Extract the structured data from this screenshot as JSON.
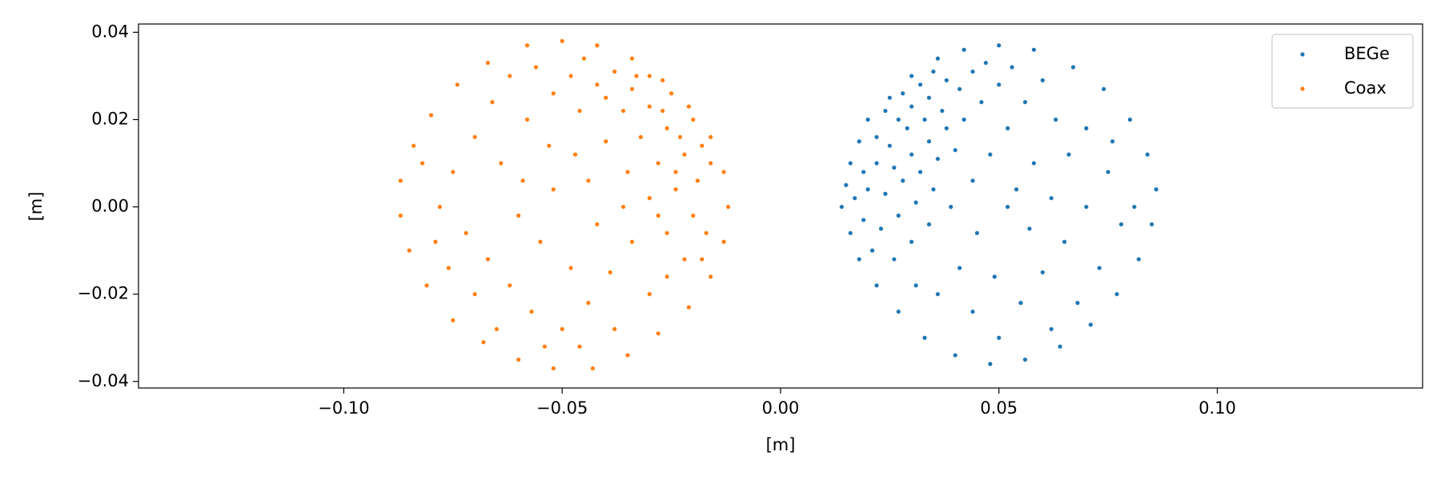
{
  "chart_data": {
    "type": "scatter",
    "xlabel": "[m]",
    "ylabel": "[m]",
    "xlim": [
      -0.147,
      0.147
    ],
    "ylim": [
      -0.0415,
      0.0419
    ],
    "xticks": [
      {
        "value": -0.1,
        "label": "−0.10"
      },
      {
        "value": -0.05,
        "label": "−0.05"
      },
      {
        "value": 0,
        "label": "0.00"
      },
      {
        "value": 0.05,
        "label": "0.05"
      },
      {
        "value": 0.1,
        "label": "0.10"
      }
    ],
    "yticks": [
      {
        "value": -0.04,
        "label": "−0.04"
      },
      {
        "value": -0.02,
        "label": "−0.02"
      },
      {
        "value": 0,
        "label": "0.00"
      },
      {
        "value": 0.02,
        "label": "0.02"
      },
      {
        "value": 0.04,
        "label": "0.04"
      }
    ],
    "legend": "upper right",
    "series": [
      {
        "name": "BEGe",
        "color": "#1f77b4",
        "x": [
          0.03,
          0.025,
          0.02,
          0.018,
          0.016,
          0.015,
          0.014,
          0.016,
          0.018,
          0.022,
          0.027,
          0.033,
          0.04,
          0.048,
          0.056,
          0.064,
          0.071,
          0.077,
          0.082,
          0.085,
          0.086,
          0.084,
          0.08,
          0.074,
          0.067,
          0.058,
          0.05,
          0.042,
          0.036,
          0.028,
          0.032,
          0.035,
          0.038,
          0.024,
          0.027,
          0.03,
          0.034,
          0.022,
          0.025,
          0.029,
          0.033,
          0.037,
          0.041,
          0.044,
          0.047,
          0.019,
          0.022,
          0.026,
          0.03,
          0.034,
          0.038,
          0.042,
          0.046,
          0.05,
          0.053,
          0.017,
          0.02,
          0.024,
          0.028,
          0.032,
          0.036,
          0.04,
          0.019,
          0.023,
          0.027,
          0.031,
          0.035,
          0.021,
          0.026,
          0.03,
          0.034,
          0.039,
          0.044,
          0.048,
          0.052,
          0.056,
          0.06,
          0.063,
          0.066,
          0.058,
          0.054,
          0.045,
          0.041,
          0.036,
          0.031,
          0.044,
          0.05,
          0.055,
          0.06,
          0.065,
          0.07,
          0.075,
          0.078,
          0.073,
          0.068,
          0.062,
          0.057,
          0.049,
          0.07,
          0.076,
          0.081,
          0.052,
          0.062
        ],
        "y": [
          0.03,
          0.025,
          0.02,
          0.015,
          0.01,
          0.005,
          0.0,
          -0.006,
          -0.012,
          -0.018,
          -0.024,
          -0.03,
          -0.034,
          -0.036,
          -0.035,
          -0.032,
          -0.027,
          -0.02,
          -0.012,
          -0.004,
          0.004,
          0.012,
          0.02,
          0.027,
          0.032,
          0.036,
          0.037,
          0.036,
          0.034,
          0.026,
          0.028,
          0.031,
          0.029,
          0.022,
          0.02,
          0.023,
          0.025,
          0.016,
          0.014,
          0.018,
          0.02,
          0.022,
          0.027,
          0.031,
          0.033,
          0.008,
          0.01,
          0.009,
          0.012,
          0.015,
          0.018,
          0.02,
          0.024,
          0.028,
          0.032,
          0.002,
          0.004,
          0.003,
          0.006,
          0.008,
          0.011,
          0.013,
          -0.003,
          -0.005,
          -0.002,
          0.001,
          0.004,
          -0.01,
          -0.012,
          -0.008,
          -0.004,
          0.0,
          0.006,
          0.012,
          0.018,
          0.024,
          0.029,
          0.02,
          0.012,
          0.01,
          0.004,
          -0.006,
          -0.014,
          -0.02,
          -0.018,
          -0.024,
          -0.03,
          -0.022,
          -0.015,
          -0.008,
          0.0,
          0.008,
          -0.004,
          -0.014,
          -0.022,
          -0.028,
          -0.005,
          -0.016,
          0.018,
          0.015,
          0.0,
          0.0,
          0.002
        ]
      },
      {
        "name": "Coax",
        "color": "#ff7f0e",
        "x": [
          -0.05,
          -0.042,
          -0.034,
          -0.027,
          -0.021,
          -0.016,
          -0.013,
          -0.012,
          -0.013,
          -0.016,
          -0.021,
          -0.028,
          -0.035,
          -0.043,
          -0.052,
          -0.06,
          -0.068,
          -0.075,
          -0.081,
          -0.085,
          -0.087,
          -0.087,
          -0.084,
          -0.08,
          -0.074,
          -0.067,
          -0.058,
          -0.03,
          -0.025,
          -0.02,
          -0.018,
          -0.016,
          -0.019,
          -0.022,
          -0.026,
          -0.03,
          -0.034,
          -0.038,
          -0.045,
          -0.048,
          -0.042,
          -0.036,
          -0.032,
          -0.028,
          -0.024,
          -0.02,
          -0.017,
          -0.023,
          -0.027,
          -0.033,
          -0.04,
          -0.046,
          -0.052,
          -0.056,
          -0.062,
          -0.058,
          -0.053,
          -0.047,
          -0.04,
          -0.035,
          -0.03,
          -0.026,
          -0.022,
          -0.018,
          -0.066,
          -0.07,
          -0.064,
          -0.059,
          -0.075,
          -0.078,
          -0.072,
          -0.067,
          -0.062,
          -0.057,
          -0.05,
          -0.044,
          -0.039,
          -0.034,
          -0.042,
          -0.055,
          -0.06,
          -0.048,
          -0.07,
          -0.076,
          -0.065,
          -0.054,
          -0.046,
          -0.038,
          -0.03,
          -0.026,
          -0.082,
          -0.079,
          -0.036,
          -0.044,
          -0.052,
          -0.028,
          -0.024
        ],
        "y": [
          0.038,
          0.037,
          0.034,
          0.029,
          0.023,
          0.016,
          0.008,
          0.0,
          -0.008,
          -0.016,
          -0.023,
          -0.029,
          -0.034,
          -0.037,
          -0.037,
          -0.035,
          -0.031,
          -0.026,
          -0.018,
          -0.01,
          -0.002,
          0.006,
          0.014,
          0.021,
          0.028,
          0.033,
          0.037,
          0.03,
          0.026,
          0.02,
          0.014,
          0.01,
          0.006,
          0.012,
          0.018,
          0.023,
          0.027,
          0.031,
          0.034,
          0.03,
          0.028,
          0.022,
          0.016,
          0.01,
          0.004,
          -0.002,
          -0.006,
          0.016,
          0.022,
          0.03,
          0.025,
          0.022,
          0.026,
          0.032,
          0.03,
          0.02,
          0.014,
          0.012,
          0.015,
          0.008,
          0.002,
          -0.006,
          -0.012,
          -0.012,
          0.024,
          0.016,
          0.01,
          0.006,
          0.008,
          0.0,
          -0.006,
          -0.012,
          -0.018,
          -0.024,
          -0.028,
          -0.022,
          -0.015,
          -0.008,
          -0.004,
          -0.008,
          -0.002,
          -0.014,
          -0.02,
          -0.014,
          -0.028,
          -0.032,
          -0.032,
          -0.028,
          -0.02,
          -0.016,
          0.01,
          -0.008,
          0.0,
          0.006,
          0.004,
          -0.002,
          0.008
        ]
      }
    ]
  }
}
